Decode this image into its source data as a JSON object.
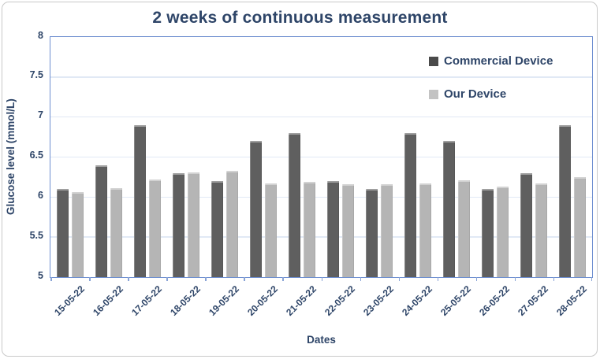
{
  "title": "2 weeks of continuous measurement",
  "axes": {
    "x_label": "Dates",
    "y_label": "Glucose level (mmol/L)",
    "y_tick_labels": [
      "8",
      "7.5",
      "7",
      "6.5",
      "6",
      "5.5",
      "5"
    ]
  },
  "legend": {
    "items": [
      {
        "label": "Commercial Device",
        "swatch_color": "#4a4a4a"
      },
      {
        "label": "Our Device",
        "swatch_color": "#c3c3c3"
      }
    ]
  },
  "colors": {
    "text_navy": "#2e4568",
    "plot_border_blue": "#6e8fd0",
    "gridline": "#e1e9f5",
    "axis_tick": "#8aa4d6",
    "bar_dark": "#5f5f5f",
    "bar_light": "#b5b5b5",
    "figure_border": "#c9c9c9"
  },
  "chart_data": {
    "type": "bar",
    "title": "2 weeks of continuous measurement",
    "xlabel": "Dates",
    "ylabel": "Glucose level (mmol/L)",
    "ylim": [
      5,
      8
    ],
    "yticks": [
      5,
      5.5,
      6,
      6.5,
      7,
      7.5,
      8
    ],
    "grid": true,
    "legend_position": "inside top-right",
    "categories": [
      "15-05-22",
      "16-05-22",
      "17-05-22",
      "18-05-22",
      "19-05-22",
      "20-05-22",
      "21-05-22",
      "22-05-22",
      "23-05-22",
      "24-05-22",
      "25-05-22",
      "26-05-22",
      "27-05-22",
      "28-05-22"
    ],
    "series": [
      {
        "name": "Commercial Device",
        "color": "#5f5f5f",
        "values": [
          6.1,
          6.4,
          6.9,
          6.3,
          6.2,
          6.7,
          6.8,
          6.2,
          6.1,
          6.8,
          6.7,
          6.1,
          6.3,
          6.9
        ]
      },
      {
        "name": "Our Device",
        "color": "#b5b5b5",
        "values": [
          6.06,
          6.11,
          6.22,
          6.31,
          6.33,
          6.17,
          6.19,
          6.16,
          6.16,
          6.17,
          6.21,
          6.13,
          6.17,
          6.25
        ]
      }
    ]
  }
}
